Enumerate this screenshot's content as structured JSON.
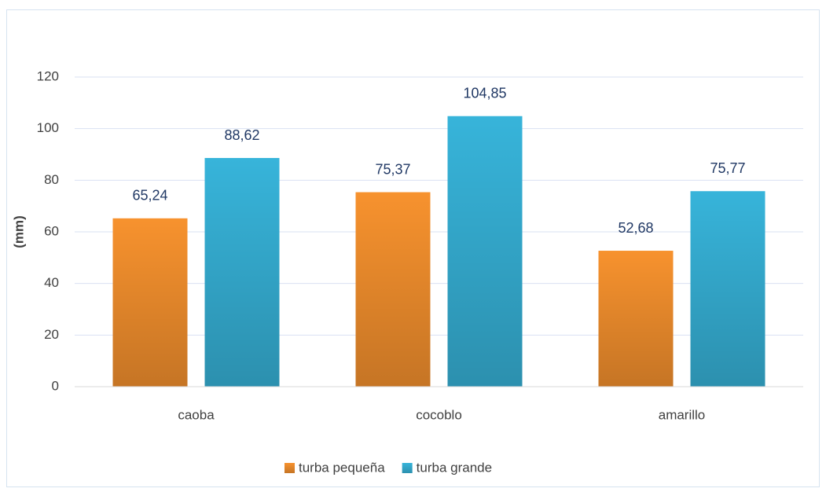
{
  "chart_data": {
    "type": "bar",
    "y_label": "(mm)",
    "categories": [
      "caoba",
      "cocoblo",
      "amarillo"
    ],
    "series": [
      {
        "name": "turba pequeña",
        "color": "#f7922e",
        "values": [
          65.24,
          75.37,
          52.68
        ],
        "value_labels": [
          "65,24",
          "75,37",
          "52,68"
        ]
      },
      {
        "name": "turba grande",
        "color": "#37b4da",
        "values": [
          88.62,
          104.85,
          75.77
        ],
        "value_labels": [
          "88,62",
          "104,85",
          "75,77"
        ]
      }
    ],
    "ylim": [
      0,
      120
    ],
    "yticks": [
      0,
      20,
      40,
      60,
      80,
      100,
      120
    ],
    "grid": true,
    "legend": "bottom"
  }
}
